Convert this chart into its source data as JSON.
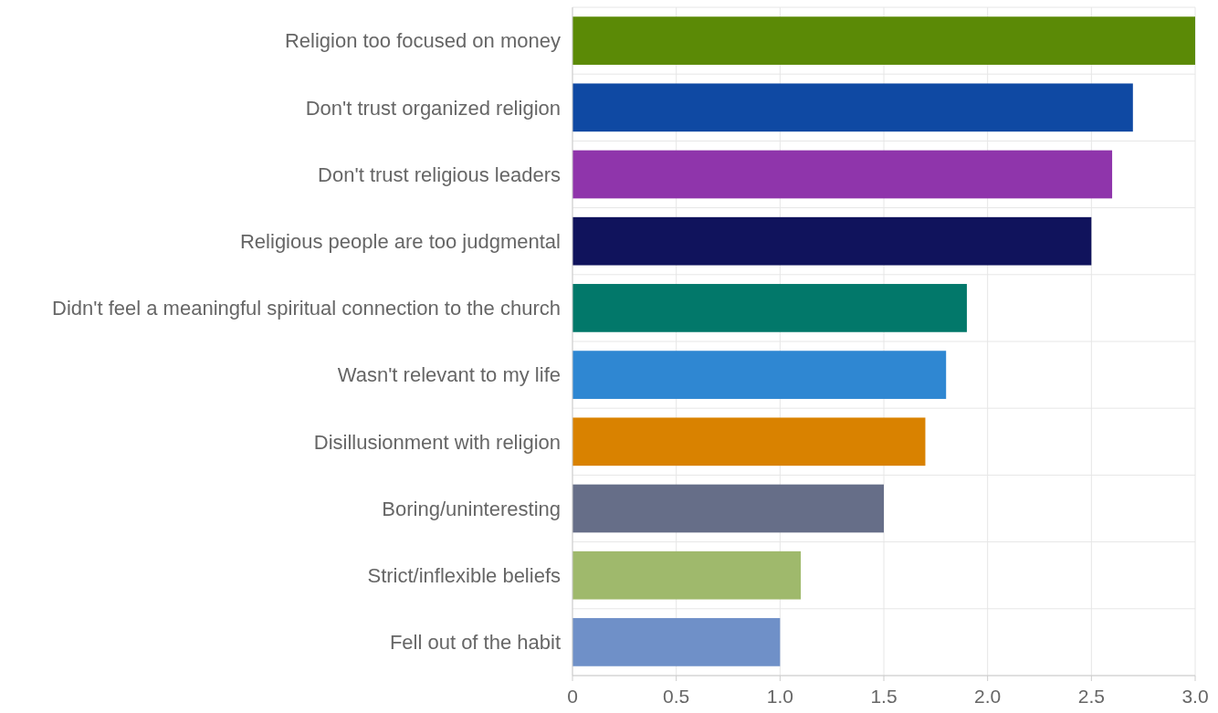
{
  "chart_data": {
    "type": "bar",
    "orientation": "horizontal",
    "categories": [
      "Religion too focused on money",
      "Don't trust organized religion",
      "Don't trust religious leaders",
      "Religious people are too judgmental",
      "Didn't feel a meaningful spiritual connection to the church",
      "Wasn't relevant to my life",
      "Disillusionment with religion",
      "Boring/uninteresting",
      "Strict/inflexible beliefs",
      "Fell out of the habit"
    ],
    "values": [
      3.0,
      2.7,
      2.6,
      2.5,
      1.9,
      1.8,
      1.7,
      1.5,
      1.1,
      1.0
    ],
    "colors": [
      "#5b8a06",
      "#0f49a3",
      "#8f35ab",
      "#10135c",
      "#02786a",
      "#2f87d2",
      "#d98200",
      "#666e88",
      "#9fb96c",
      "#6f90c8"
    ],
    "xlim": [
      0,
      3
    ],
    "xticks": [
      {
        "value": 0,
        "label": "0"
      },
      {
        "value": 0.5,
        "label": "0.5"
      },
      {
        "value": 1,
        "label": "1.0"
      },
      {
        "value": 1.5,
        "label": "1.5"
      },
      {
        "value": 2,
        "label": "2.0"
      },
      {
        "value": 2.5,
        "label": "2.5"
      },
      {
        "value": 3,
        "label": "3.0"
      }
    ],
    "grid": true
  }
}
